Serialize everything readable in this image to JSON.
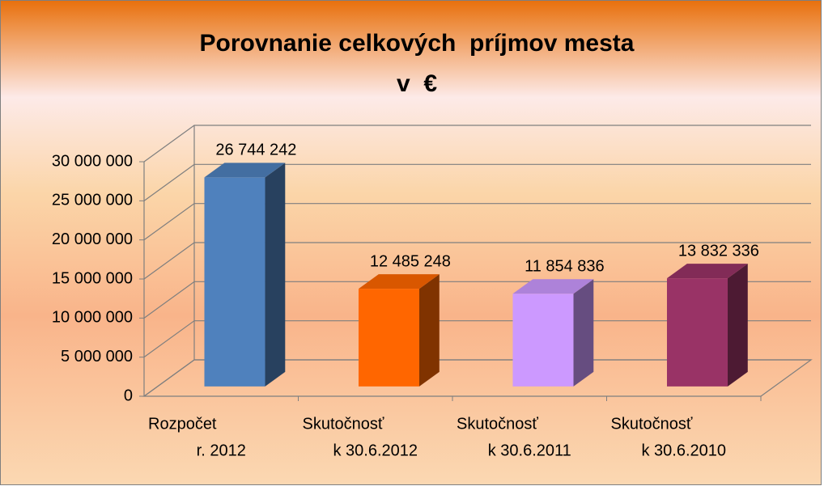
{
  "chart_data": {
    "type": "bar3d",
    "title": [
      "Porovnanie celkových  príjmov mesta",
      "v  €"
    ],
    "categories": [
      [
        "Rozpočet",
        "r. 2012"
      ],
      [
        "Skutočnosť",
        "k 30.6.2012"
      ],
      [
        "Skutočnosť",
        "k 30.6.2011"
      ],
      [
        "Skutočnosť",
        "k 30.6.2010"
      ]
    ],
    "values": [
      26744242,
      12485248,
      11854836,
      13832336
    ],
    "value_labels": [
      "26 744 242",
      "12 485 248",
      "11 854 836",
      "13 832 336"
    ],
    "colors": [
      "#4f81bd",
      "#ff6600",
      "#cc99ff",
      "#993366"
    ],
    "ylim": [
      0,
      30000000
    ],
    "yticks": [
      0,
      {
        "value": 5000000,
        "label": "5 000 000"
      },
      {
        "value": 10000000,
        "label": "10 000 000"
      },
      {
        "value": 15000000,
        "label": "15 000 000"
      },
      {
        "value": 20000000,
        "label": "20 000 000"
      },
      {
        "value": 25000000,
        "label": "25 000 000"
      },
      {
        "value": 30000000,
        "label": "30 000 000"
      }
    ],
    "grid": true
  }
}
